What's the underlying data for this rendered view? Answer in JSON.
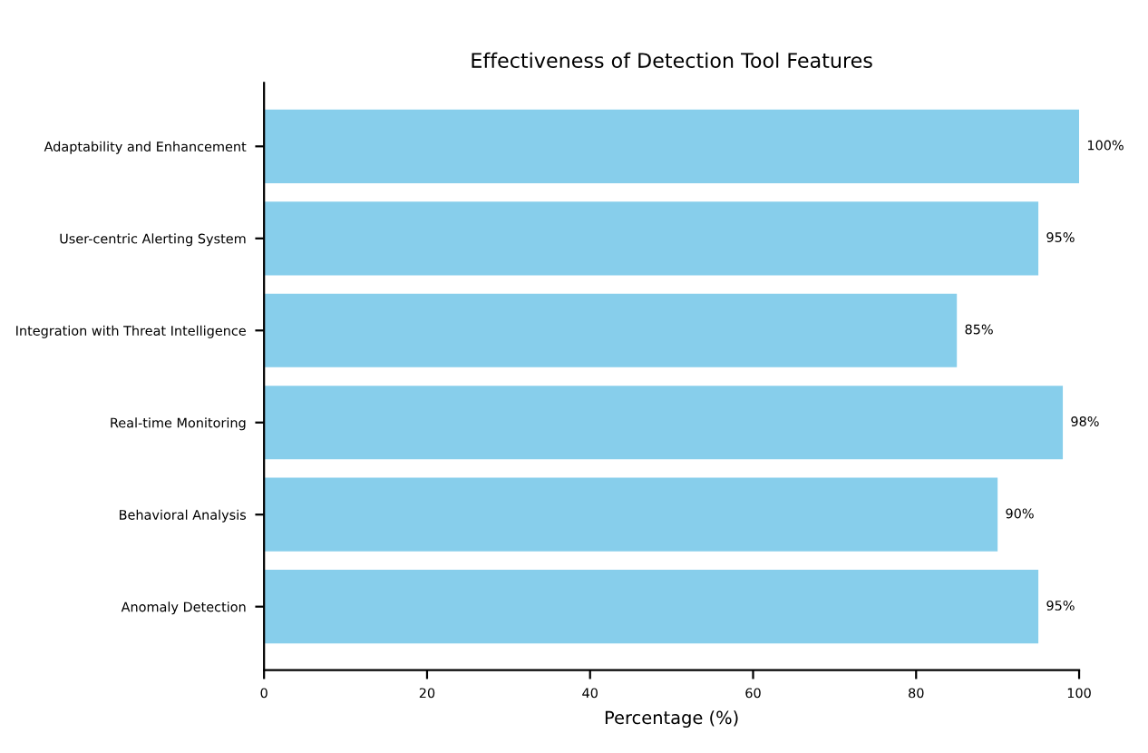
{
  "chart_data": {
    "type": "bar",
    "orientation": "horizontal",
    "title": "Effectiveness of Detection Tool Features",
    "xlabel": "Percentage (%)",
    "categories": [
      "Adaptability and Enhancement",
      "User-centric Alerting System",
      "Integration with Threat Intelligence",
      "Real-time Monitoring",
      "Behavioral Analysis",
      "Anomaly Detection"
    ],
    "values": [
      100,
      95,
      85,
      98,
      90,
      95
    ],
    "value_labels": [
      "100%",
      "95%",
      "85%",
      "98%",
      "90%",
      "95%"
    ],
    "color": "#87ceeb",
    "xlim": [
      0,
      100
    ],
    "xticks": [
      0,
      20,
      40,
      60,
      80,
      100
    ],
    "grid": false
  }
}
